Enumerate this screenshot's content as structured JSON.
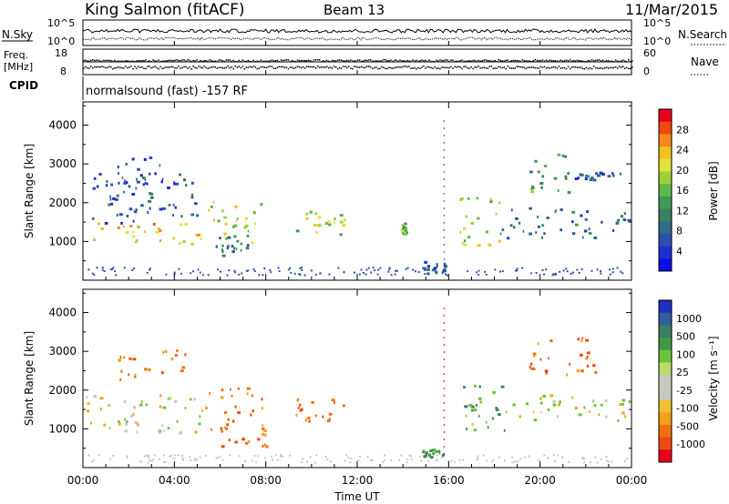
{
  "header": {
    "title": "King Salmon (fitACF)",
    "beam": "Beam 13",
    "date": "11/Mar/2015"
  },
  "top_panels": {
    "nsky_label": "N.Sky",
    "nsky_ticks": [
      "10^5",
      "10^0"
    ],
    "nsearch_label": "N.Search",
    "nsearch_ticks": [
      "10^5",
      "10^0"
    ],
    "freq_label_1": "Freq.",
    "freq_label_2": "[MHz]",
    "freq_ticks": [
      "18",
      "8"
    ],
    "nave_label": "Nave",
    "nave_ticks": [
      "60",
      "0"
    ],
    "cpid_label": "CPID",
    "cpid_text": "normalsound (fast) -157 RF"
  },
  "power_colorbar": {
    "title": "Power [dB]",
    "ticks": [
      "28",
      "24",
      "20",
      "16",
      "12",
      "8",
      "4"
    ],
    "colors": [
      "#e8001a",
      "#f04a10",
      "#f58a1a",
      "#f3c020",
      "#dfe23a",
      "#9ed23c",
      "#5fb84a",
      "#3f9a5a",
      "#3a7f5e",
      "#2f6a8a",
      "#2f4fb0",
      "#1f2fd0",
      "#0b10e8"
    ]
  },
  "velocity_colorbar": {
    "title": "Velocity [m s⁻¹]",
    "ticks": [
      "1000",
      "500",
      "100",
      "25",
      "-25",
      "-100",
      "-500",
      "-1000"
    ],
    "colors": [
      "#1d2fc0",
      "#2f5fa0",
      "#3a7f5e",
      "#3f9a4a",
      "#6cc43a",
      "#b8dc6a",
      "#c8c8c0",
      "#c8c8c0",
      "#f0c030",
      "#f5a01a",
      "#f07010",
      "#ee4a10",
      "#e8001a"
    ]
  },
  "axes": {
    "ylabel": "Slant Range [km]",
    "xlabel": "Time UT",
    "yticks": [
      "4000",
      "3000",
      "2000",
      "1000"
    ],
    "xticks": [
      "00:00",
      "04:00",
      "08:00",
      "12:00",
      "16:00",
      "20:00",
      "00:00"
    ]
  },
  "chart_data": [
    {
      "type": "heatmap",
      "name": "Power",
      "xlabel": "Time UT",
      "ylabel": "Slant Range [km]",
      "xlim_hours": [
        0,
        24
      ],
      "ylim_km": [
        0,
        4600
      ],
      "colorbar": "Power [dB]",
      "regions": [
        {
          "t": [
            0.2,
            5.2
          ],
          "r": [
            900,
            1500
          ],
          "value_db": 22
        },
        {
          "t": [
            0.3,
            5.4
          ],
          "r": [
            1500,
            2800
          ],
          "value_db": 6
        },
        {
          "t": [
            1.5,
            3.5
          ],
          "r": [
            2500,
            3200
          ],
          "value_db": 5
        },
        {
          "t": [
            5.3,
            7.8
          ],
          "r": [
            1000,
            2100
          ],
          "value_db": 18
        },
        {
          "t": [
            5.8,
            7.2
          ],
          "r": [
            600,
            1200
          ],
          "value_db": 8
        },
        {
          "t": [
            9.3,
            11.4
          ],
          "r": [
            1200,
            1800
          ],
          "value_db": 18
        },
        {
          "t": [
            13.9,
            14.1
          ],
          "r": [
            1200,
            1500
          ],
          "value_db": 14
        },
        {
          "t": [
            14.8,
            15.8
          ],
          "r": [
            200,
            500
          ],
          "value_db": 6
        },
        {
          "t": [
            16.3,
            18.2
          ],
          "r": [
            900,
            2200
          ],
          "value_db": 18
        },
        {
          "t": [
            18.2,
            24.0
          ],
          "r": [
            1100,
            1900
          ],
          "value_db": 8
        },
        {
          "t": [
            19.5,
            21.2
          ],
          "r": [
            2300,
            3300
          ],
          "value_db": 12
        },
        {
          "t": [
            21.5,
            23.5
          ],
          "r": [
            2600,
            2800
          ],
          "value_db": 6
        }
      ]
    },
    {
      "type": "heatmap",
      "name": "Velocity",
      "xlabel": "Time UT",
      "ylabel": "Slant Range [km]",
      "xlim_hours": [
        0,
        24
      ],
      "ylim_km": [
        0,
        4600
      ],
      "colorbar": "Velocity [m s⁻¹]",
      "regions": [
        {
          "t": [
            0.1,
            5.4
          ],
          "r": [
            900,
            1900
          ],
          "value_ms": 0
        },
        {
          "t": [
            1.5,
            4.5
          ],
          "r": [
            2300,
            3100
          ],
          "value_ms": -300
        },
        {
          "t": [
            5.3,
            8.0
          ],
          "r": [
            500,
            2100
          ],
          "value_ms": -300
        },
        {
          "t": [
            9.3,
            11.4
          ],
          "r": [
            1200,
            1800
          ],
          "value_ms": -300
        },
        {
          "t": [
            14.8,
            15.8
          ],
          "r": [
            300,
            500
          ],
          "value_ms": 300
        },
        {
          "t": [
            16.3,
            18.6
          ],
          "r": [
            900,
            2200
          ],
          "value_ms": 250
        },
        {
          "t": [
            18.6,
            24.0
          ],
          "r": [
            1200,
            1900
          ],
          "value_ms": 0
        },
        {
          "t": [
            19.5,
            22.5
          ],
          "r": [
            2400,
            3400
          ],
          "value_ms": -300
        }
      ]
    }
  ]
}
